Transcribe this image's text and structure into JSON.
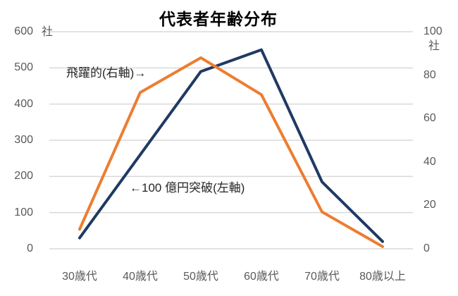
{
  "title": "代表者年齢分布",
  "chart_data": {
    "type": "line",
    "title": "代表者年齢分布",
    "categories": [
      "30歳代",
      "40歳代",
      "50歳代",
      "60歳代",
      "70歳代",
      "80歳以上"
    ],
    "series": [
      {
        "name": "100億円突破(左軸)",
        "axis": "left",
        "color": "#1F3A63",
        "values": [
          30,
          260,
          490,
          550,
          185,
          20
        ]
      },
      {
        "name": "飛躍的(右軸)",
        "axis": "right",
        "color": "#ED7D31",
        "values": [
          9,
          72,
          88,
          71,
          17,
          1
        ]
      }
    ],
    "left_axis": {
      "unit": "社",
      "range": [
        0,
        600
      ],
      "ticks": [
        600,
        500,
        400,
        300,
        200,
        100,
        0
      ]
    },
    "right_axis": {
      "unit": "社",
      "range": [
        0,
        100
      ],
      "ticks": [
        100,
        80,
        60,
        40,
        20,
        0
      ]
    },
    "annotations": [
      {
        "text": "飛躍的(右軸)→",
        "refers_to": "飛躍的(右軸)"
      },
      {
        "text": "←100 億円突破(左軸)",
        "refers_to": "100億円突破(左軸)"
      }
    ],
    "grid": true,
    "legend_position": "none",
    "background_color": "#FFFFFF",
    "gridline_color": "#D9D9D9",
    "tick_label_color": "#595959",
    "line_width": 4
  }
}
